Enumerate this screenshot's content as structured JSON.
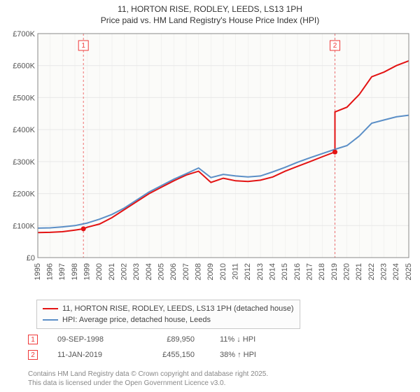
{
  "title_line1": "11, HORTON RISE, RODLEY, LEEDS, LS13 1PH",
  "title_line2": "Price paid vs. HM Land Registry's House Price Index (HPI)",
  "chart": {
    "type": "line",
    "background_color": "#fbfbf9",
    "grid_color": "#e8e8e8",
    "axis_color": "#888888",
    "text_color": "#555555",
    "label_fontsize": 11,
    "ylim": [
      0,
      700000
    ],
    "ytick_step": 100000,
    "ytick_labels": [
      "£0",
      "£100K",
      "£200K",
      "£300K",
      "£400K",
      "£500K",
      "£600K",
      "£700K"
    ],
    "xlim": [
      1995,
      2025
    ],
    "xtick_step": 1,
    "xtick_labels": [
      "1995",
      "1996",
      "1997",
      "1998",
      "1999",
      "2000",
      "2001",
      "2002",
      "2003",
      "2004",
      "2005",
      "2006",
      "2007",
      "2008",
      "2009",
      "2010",
      "2011",
      "2012",
      "2013",
      "2014",
      "2015",
      "2016",
      "2017",
      "2018",
      "2019",
      "2020",
      "2021",
      "2022",
      "2023",
      "2024",
      "2025"
    ],
    "series": [
      {
        "name": "price_paid",
        "label": "11, HORTON RISE, RODLEY, LEEDS, LS13 1PH (detached house)",
        "color": "#e31313",
        "line_width": 2,
        "x": [
          1995,
          1996,
          1997,
          1998,
          1998.69,
          1999,
          2000,
          2001,
          2002,
          2003,
          2004,
          2005,
          2006,
          2007,
          2008,
          2009,
          2010,
          2011,
          2012,
          2013,
          2014,
          2015,
          2016,
          2017,
          2018,
          2019.03,
          2019.03,
          2020,
          2021,
          2022,
          2023,
          2024,
          2025
        ],
        "y": [
          78000,
          79000,
          81000,
          86000,
          89950,
          95000,
          105000,
          125000,
          150000,
          175000,
          200000,
          220000,
          240000,
          258000,
          270000,
          235000,
          248000,
          240000,
          238000,
          242000,
          252000,
          270000,
          285000,
          300000,
          315000,
          330000,
          455150,
          470000,
          510000,
          565000,
          580000,
          600000,
          615000
        ]
      },
      {
        "name": "hpi",
        "label": "HPI: Average price, detached house, Leeds",
        "color": "#5b8fc7",
        "line_width": 2,
        "x": [
          1995,
          1996,
          1997,
          1998,
          1999,
          2000,
          2001,
          2002,
          2003,
          2004,
          2005,
          2006,
          2007,
          2008,
          2009,
          2010,
          2011,
          2012,
          2013,
          2014,
          2015,
          2016,
          2017,
          2018,
          2019,
          2020,
          2021,
          2022,
          2023,
          2024,
          2025
        ],
        "y": [
          92000,
          93000,
          96000,
          100000,
          108000,
          120000,
          135000,
          155000,
          180000,
          205000,
          225000,
          245000,
          262000,
          280000,
          250000,
          260000,
          255000,
          252000,
          255000,
          268000,
          282000,
          298000,
          312000,
          325000,
          338000,
          350000,
          380000,
          420000,
          430000,
          440000,
          445000
        ]
      }
    ],
    "markers": [
      {
        "id": "1",
        "x": 1998.69,
        "color": "#ef3838"
      },
      {
        "id": "2",
        "x": 2019.03,
        "color": "#ef3838"
      }
    ]
  },
  "legend": {
    "items": [
      {
        "color": "#e31313",
        "label": "11, HORTON RISE, RODLEY, LEEDS, LS13 1PH (detached house)"
      },
      {
        "color": "#5b8fc7",
        "label": "HPI: Average price, detached house, Leeds"
      }
    ]
  },
  "sales": [
    {
      "marker": "1",
      "date": "09-SEP-1998",
      "price": "£89,950",
      "hpi": "11% ↓ HPI"
    },
    {
      "marker": "2",
      "date": "11-JAN-2019",
      "price": "£455,150",
      "hpi": "38% ↑ HPI"
    }
  ],
  "footer": {
    "line1": "Contains HM Land Registry data © Crown copyright and database right 2025.",
    "line2": "This data is licensed under the Open Government Licence v3.0."
  }
}
